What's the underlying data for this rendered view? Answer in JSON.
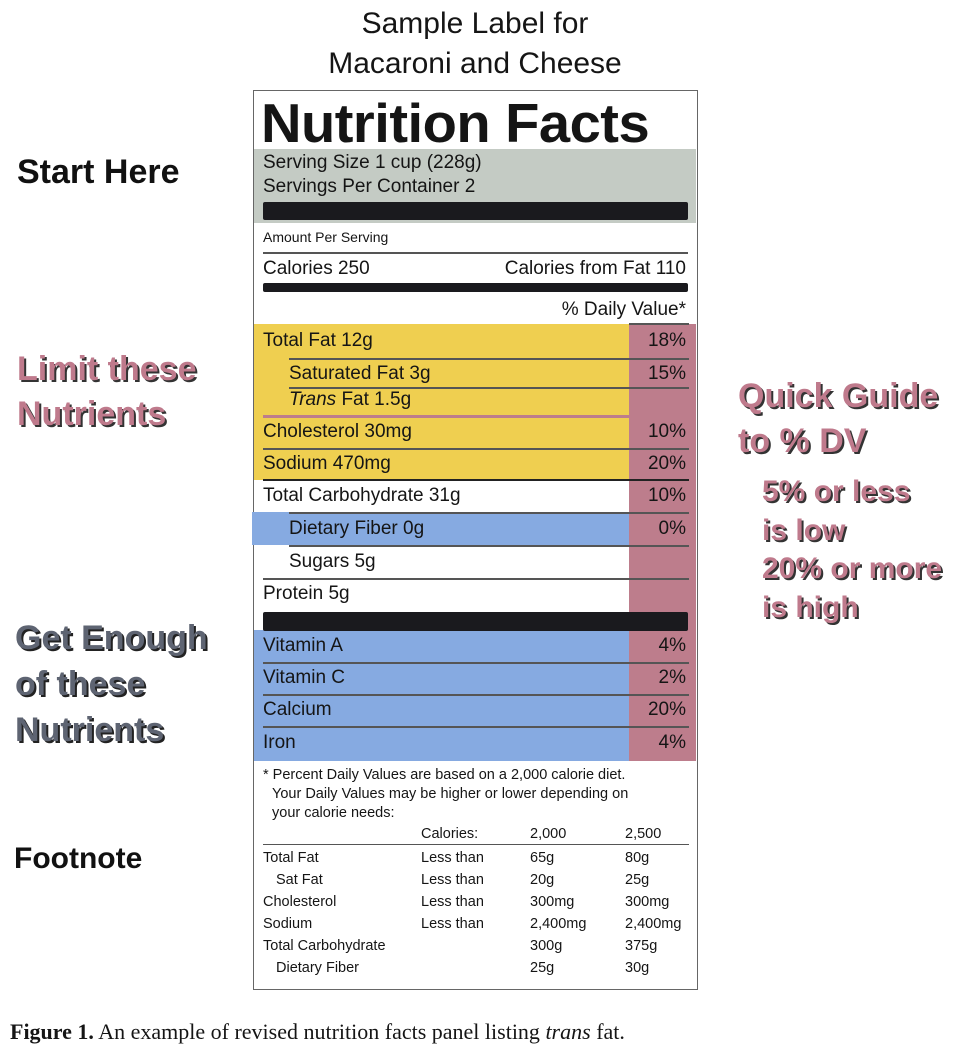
{
  "heading": {
    "line1": "Sample Label for",
    "line2": "Macaroni and Cheese"
  },
  "side_labels": {
    "start": "Start Here",
    "limit": [
      "Limit these",
      "Nutrients"
    ],
    "get": [
      "Get Enough",
      "of these",
      "Nutrients"
    ],
    "footnote": "Footnote",
    "quick_guide": [
      "Quick Guide",
      "to % DV"
    ],
    "guide_lines": [
      "5% or less",
      "is low",
      "20% or more",
      "is high"
    ]
  },
  "label": {
    "title": "Nutrition Facts",
    "serving_size": "Serving Size 1 cup (228g)",
    "servings_per_container": "Servings Per Container 2",
    "amount_per_serving": "Amount Per Serving",
    "calories": "Calories 250",
    "calories_from_fat": "Calories from Fat 110",
    "dv_header": "% Daily Value*",
    "nutrients": [
      {
        "name": "Total Fat 12g",
        "dv": "18%"
      },
      {
        "name": "Saturated Fat 3g",
        "dv": "15%"
      },
      {
        "name_italic": "Trans",
        "name": " Fat 1.5g",
        "dv": ""
      },
      {
        "name": "Cholesterol 30mg",
        "dv": "10%"
      },
      {
        "name": "Sodium 470mg",
        "dv": "20%"
      },
      {
        "name": "Total Carbohydrate 31g",
        "dv": "10%"
      },
      {
        "name": "Dietary Fiber 0g",
        "dv": "0%"
      },
      {
        "name": "Sugars 5g",
        "dv": ""
      },
      {
        "name": "Protein 5g",
        "dv": ""
      }
    ],
    "vitamins": [
      {
        "name": "Vitamin A",
        "dv": "4%"
      },
      {
        "name": "Vitamin C",
        "dv": "2%"
      },
      {
        "name": "Calcium",
        "dv": "20%"
      },
      {
        "name": "Iron",
        "dv": "4%"
      }
    ],
    "footnote_text": [
      "* Percent Daily Values are based on a 2,000 calorie diet.",
      "Your Daily Values may be higher or lower depending on",
      "your calorie needs:"
    ],
    "footnote_table": {
      "header": [
        "Calories:",
        "2,000",
        "2,500"
      ],
      "rows": [
        [
          "Total Fat",
          "Less than",
          "65g",
          "80g"
        ],
        [
          "Sat Fat",
          "Less than",
          "20g",
          "25g"
        ],
        [
          "Cholesterol",
          "Less than",
          "300mg",
          "300mg"
        ],
        [
          "Sodium",
          "Less than",
          "2,400mg",
          "2,400mg"
        ],
        [
          "Total Carbohydrate",
          "",
          "300g",
          "375g"
        ],
        [
          "Dietary Fiber",
          "",
          "25g",
          "30g"
        ]
      ]
    }
  },
  "caption": {
    "bold": "Figure 1.",
    "text1": " An example of revised nutrition facts panel listing ",
    "italic": "trans",
    "text2": " fat."
  },
  "colors": {
    "serving_gray": "#c4cbc4",
    "limit_yellow": "#efcf50",
    "dv_pink": "#bd7d8c",
    "get_blue": "#86aae1"
  }
}
